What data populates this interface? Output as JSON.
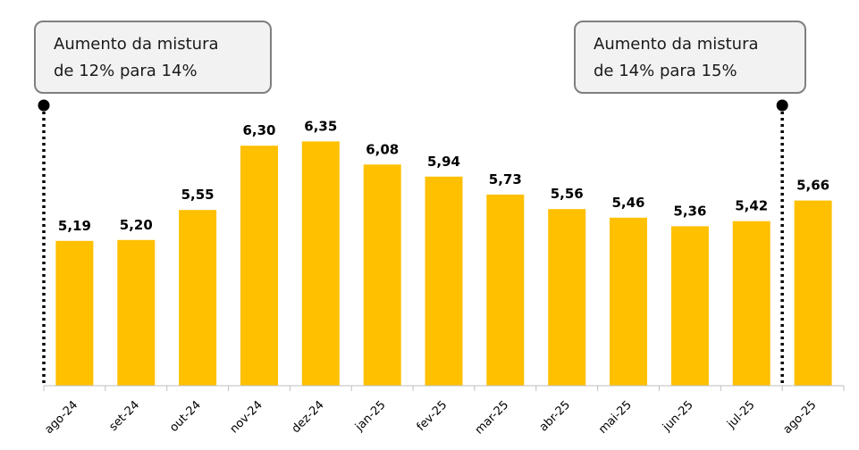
{
  "annotations": [
    {
      "line1": "Aumento da mistura",
      "line2": "de 12% para 14%",
      "category": "ago-24"
    },
    {
      "line1": "Aumento da mistura",
      "line2": "de 14% para 15%",
      "category": "ago-25"
    }
  ],
  "chart_data": {
    "type": "bar",
    "title": "",
    "xlabel": "",
    "ylabel": "",
    "categories": [
      "ago-24",
      "set-24",
      "out-24",
      "nov-24",
      "dez-24",
      "jan-25",
      "fev-25",
      "mar-25",
      "abr-25",
      "mai-25",
      "jun-25",
      "jul-25",
      "ago-25"
    ],
    "values": [
      5.19,
      5.2,
      5.55,
      6.3,
      6.35,
      6.08,
      5.94,
      5.73,
      5.56,
      5.46,
      5.36,
      5.42,
      5.66
    ],
    "value_labels": [
      "5,19",
      "5,20",
      "5,55",
      "6,30",
      "6,35",
      "6,08",
      "5,94",
      "5,73",
      "5,56",
      "5,46",
      "5,36",
      "5,42",
      "5,66"
    ],
    "ylim": [
      3.5,
      6.5
    ],
    "grid": false,
    "bar_color": "#FFC000"
  }
}
